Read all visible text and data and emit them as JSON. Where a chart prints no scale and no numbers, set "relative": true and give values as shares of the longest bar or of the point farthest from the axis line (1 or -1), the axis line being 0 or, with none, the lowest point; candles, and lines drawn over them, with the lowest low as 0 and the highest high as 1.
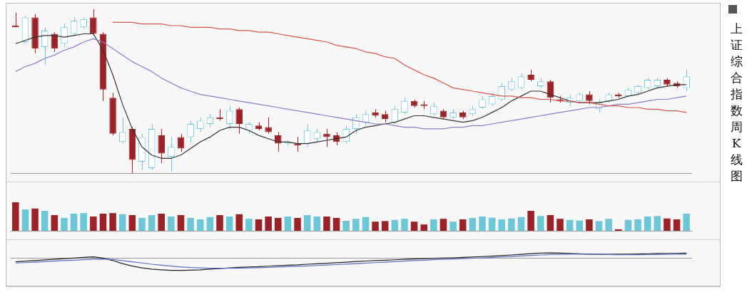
{
  "chart_data": [
    {
      "type": "candlestick",
      "title": "上证综合指数周K线图",
      "relative": true,
      "tick_labels": false,
      "legend": false,
      "marker": "none",
      "categories": [
        null,
        null,
        null,
        null,
        null,
        null,
        null,
        null,
        null,
        null,
        null,
        null,
        null,
        null,
        null,
        null,
        null,
        null,
        null,
        null,
        null,
        null,
        null,
        null,
        null,
        null,
        null,
        null,
        null,
        null,
        null,
        null,
        null,
        null,
        null,
        null,
        null,
        null,
        null,
        null,
        null,
        null,
        null,
        null,
        null,
        null,
        null,
        null,
        null,
        null,
        null,
        null,
        null,
        null,
        null,
        null,
        null,
        null,
        null,
        null,
        null,
        null,
        null,
        null,
        null,
        null,
        null,
        null,
        null,
        null
      ],
      "ohlc": [
        [
          0.9,
          0.98,
          0.89,
          0.89
        ],
        [
          0.8,
          0.96,
          0.79,
          0.95
        ],
        [
          0.95,
          0.97,
          0.73,
          0.76
        ],
        [
          0.77,
          0.89,
          0.66,
          0.87
        ],
        [
          0.85,
          0.86,
          0.74,
          0.76
        ],
        [
          0.79,
          0.91,
          0.77,
          0.89
        ],
        [
          0.85,
          0.95,
          0.84,
          0.93
        ],
        [
          0.89,
          0.95,
          0.88,
          0.94
        ],
        [
          0.95,
          1.0,
          0.84,
          0.85
        ],
        [
          0.85,
          0.86,
          0.44,
          0.51
        ],
        [
          0.46,
          0.49,
          0.23,
          0.24
        ],
        [
          0.19,
          0.34,
          0.18,
          0.25
        ],
        [
          0.27,
          0.28,
          0.0,
          0.08
        ],
        [
          0.07,
          0.24,
          0.02,
          0.22
        ],
        [
          0.03,
          0.3,
          0.02,
          0.27
        ],
        [
          0.23,
          0.27,
          0.06,
          0.12
        ],
        [
          0.1,
          0.22,
          0.01,
          0.16
        ],
        [
          0.22,
          0.24,
          0.13,
          0.15
        ],
        [
          0.22,
          0.32,
          0.19,
          0.3
        ],
        [
          0.27,
          0.34,
          0.25,
          0.32
        ],
        [
          0.3,
          0.36,
          0.28,
          0.34
        ],
        [
          0.34,
          0.39,
          0.32,
          0.33
        ],
        [
          0.3,
          0.41,
          0.27,
          0.38
        ],
        [
          0.39,
          0.4,
          0.24,
          0.3
        ],
        [
          0.26,
          0.31,
          0.24,
          0.3
        ],
        [
          0.29,
          0.31,
          0.26,
          0.27
        ],
        [
          0.28,
          0.34,
          0.24,
          0.25
        ],
        [
          0.23,
          0.25,
          0.13,
          0.18
        ],
        [
          0.18,
          0.2,
          0.17,
          0.19
        ],
        [
          0.18,
          0.22,
          0.13,
          0.17
        ],
        [
          0.18,
          0.3,
          0.16,
          0.26
        ],
        [
          0.21,
          0.27,
          0.19,
          0.25
        ],
        [
          0.24,
          0.27,
          0.16,
          0.22
        ],
        [
          0.23,
          0.25,
          0.17,
          0.19
        ],
        [
          0.19,
          0.29,
          0.18,
          0.27
        ],
        [
          0.27,
          0.36,
          0.24,
          0.34
        ],
        [
          0.31,
          0.38,
          0.29,
          0.36
        ],
        [
          0.37,
          0.39,
          0.34,
          0.35
        ],
        [
          0.36,
          0.38,
          0.31,
          0.33
        ],
        [
          0.31,
          0.41,
          0.3,
          0.39
        ],
        [
          0.37,
          0.46,
          0.36,
          0.44
        ],
        [
          0.44,
          0.45,
          0.4,
          0.41
        ],
        [
          0.42,
          0.44,
          0.39,
          0.41
        ],
        [
          0.36,
          0.43,
          0.35,
          0.41
        ],
        [
          0.38,
          0.39,
          0.33,
          0.34
        ],
        [
          0.34,
          0.39,
          0.33,
          0.37
        ],
        [
          0.37,
          0.38,
          0.33,
          0.34
        ],
        [
          0.36,
          0.41,
          0.35,
          0.39
        ],
        [
          0.4,
          0.47,
          0.39,
          0.45
        ],
        [
          0.42,
          0.49,
          0.41,
          0.47
        ],
        [
          0.45,
          0.55,
          0.44,
          0.53
        ],
        [
          0.51,
          0.58,
          0.5,
          0.56
        ],
        [
          0.52,
          0.61,
          0.51,
          0.59
        ],
        [
          0.6,
          0.63,
          0.56,
          0.57
        ],
        [
          0.53,
          0.58,
          0.52,
          0.56
        ],
        [
          0.56,
          0.57,
          0.43,
          0.46
        ],
        [
          0.45,
          0.47,
          0.43,
          0.44
        ],
        [
          0.43,
          0.48,
          0.41,
          0.46
        ],
        [
          0.44,
          0.49,
          0.43,
          0.48
        ],
        [
          0.48,
          0.5,
          0.42,
          0.44
        ],
        [
          0.39,
          0.45,
          0.37,
          0.43
        ],
        [
          0.44,
          0.49,
          0.43,
          0.48
        ],
        [
          0.48,
          0.49,
          0.46,
          0.47
        ],
        [
          0.47,
          0.52,
          0.46,
          0.51
        ],
        [
          0.49,
          0.54,
          0.48,
          0.53
        ],
        [
          0.52,
          0.58,
          0.51,
          0.57
        ],
        [
          0.53,
          0.58,
          0.52,
          0.57
        ],
        [
          0.57,
          0.58,
          0.53,
          0.54
        ],
        [
          0.55,
          0.56,
          0.52,
          0.53
        ],
        [
          0.52,
          0.63,
          0.5,
          0.59
        ]
      ],
      "colors": [
        "#9b2226",
        "#6cc8d8",
        "#9b2226",
        "#6cc8d8",
        "#9b2226",
        "#6cc8d8",
        "#6cc8d8",
        "#6cc8d8",
        "#9b2226",
        "#9b2226",
        "#9b2226",
        "#6cc8d8",
        "#9b2226",
        "#6cc8d8",
        "#6cc8d8",
        "#9b2226",
        "#6cc8d8",
        "#9b2226",
        "#6cc8d8",
        "#6cc8d8",
        "#6cc8d8",
        "#9b2226",
        "#6cc8d8",
        "#9b2226",
        "#6cc8d8",
        "#9b2226",
        "#9b2226",
        "#9b2226",
        "#6cc8d8",
        "#9b2226",
        "#6cc8d8",
        "#6cc8d8",
        "#9b2226",
        "#9b2226",
        "#6cc8d8",
        "#6cc8d8",
        "#6cc8d8",
        "#9b2226",
        "#9b2226",
        "#6cc8d8",
        "#6cc8d8",
        "#9b2226",
        "#9b2226",
        "#6cc8d8",
        "#9b2226",
        "#6cc8d8",
        "#9b2226",
        "#6cc8d8",
        "#6cc8d8",
        "#6cc8d8",
        "#6cc8d8",
        "#6cc8d8",
        "#6cc8d8",
        "#9b2226",
        "#6cc8d8",
        "#9b2226",
        "#9b2226",
        "#6cc8d8",
        "#6cc8d8",
        "#9b2226",
        "#6cc8d8",
        "#6cc8d8",
        "#9b2226",
        "#6cc8d8",
        "#6cc8d8",
        "#6cc8d8",
        "#6cc8d8",
        "#9b2226",
        "#9b2226",
        "#6cc8d8"
      ],
      "series": [
        {
          "type": "line",
          "color": "#333333",
          "values": [
            0.79,
            0.81,
            0.83,
            0.84,
            0.84,
            0.83,
            0.84,
            0.85,
            0.85,
            0.75,
            0.6,
            0.42,
            0.27,
            0.16,
            0.11,
            0.09,
            0.09,
            0.11,
            0.15,
            0.19,
            0.22,
            0.26,
            0.28,
            0.28,
            0.26,
            0.23,
            0.21,
            0.19,
            0.19,
            0.18,
            0.18,
            0.19,
            0.2,
            0.21,
            0.22,
            0.26,
            0.28,
            0.29,
            0.3,
            0.31,
            0.33,
            0.35,
            0.35,
            0.34,
            0.33,
            0.32,
            0.31,
            0.32,
            0.34,
            0.37,
            0.4,
            0.44,
            0.47,
            0.5,
            0.5,
            0.48,
            0.46,
            0.44,
            0.43,
            0.43,
            0.43,
            0.44,
            0.45,
            0.47,
            0.48,
            0.5,
            0.52,
            0.53,
            0.54,
            0.54
          ]
        },
        {
          "type": "line",
          "color": "#8e7cc3",
          "values": [
            0.62,
            0.65,
            0.67,
            0.7,
            0.72,
            0.75,
            0.77,
            0.8,
            0.82,
            0.8,
            0.76,
            0.72,
            0.68,
            0.65,
            0.62,
            0.58,
            0.55,
            0.52,
            0.5,
            0.48,
            0.47,
            0.46,
            0.45,
            0.44,
            0.43,
            0.42,
            0.41,
            0.4,
            0.39,
            0.38,
            0.37,
            0.36,
            0.35,
            0.34,
            0.33,
            0.32,
            0.31,
            0.3,
            0.3,
            0.29,
            0.28,
            0.28,
            0.27,
            0.27,
            0.27,
            0.28,
            0.28,
            0.29,
            0.29,
            0.3,
            0.31,
            0.32,
            0.33,
            0.34,
            0.35,
            0.36,
            0.37,
            0.38,
            0.39,
            0.4,
            0.4,
            0.41,
            0.42,
            0.42,
            0.43,
            0.44,
            0.45,
            0.45,
            0.46,
            0.47
          ]
        },
        {
          "type": "line",
          "color": "#d9534f",
          "values": [
            null,
            null,
            null,
            null,
            null,
            null,
            null,
            null,
            null,
            null,
            0.92,
            0.92,
            0.92,
            0.91,
            0.91,
            0.91,
            0.9,
            0.9,
            0.89,
            0.89,
            0.89,
            0.88,
            0.88,
            0.87,
            0.87,
            0.86,
            0.86,
            0.85,
            0.84,
            0.83,
            0.82,
            0.81,
            0.8,
            0.78,
            0.77,
            0.76,
            0.74,
            0.73,
            0.71,
            0.7,
            0.66,
            0.63,
            0.6,
            0.58,
            0.55,
            0.52,
            0.51,
            0.5,
            0.49,
            0.48,
            0.47,
            0.47,
            0.46,
            0.46,
            0.45,
            0.45,
            0.44,
            0.44,
            0.43,
            0.43,
            0.42,
            0.41,
            0.41,
            0.4,
            0.4,
            0.39,
            0.39,
            0.38,
            0.38,
            0.37
          ]
        }
      ]
    },
    {
      "type": "bar",
      "relative": true,
      "tick_labels": false,
      "legend": false,
      "categories": [
        null,
        null,
        null,
        null,
        null,
        null,
        null,
        null,
        null,
        null,
        null,
        null,
        null,
        null,
        null,
        null,
        null,
        null,
        null,
        null,
        null,
        null,
        null,
        null,
        null,
        null,
        null,
        null,
        null,
        null,
        null,
        null,
        null,
        null,
        null,
        null,
        null,
        null,
        null,
        null,
        null,
        null,
        null,
        null,
        null,
        null,
        null,
        null,
        null,
        null,
        null,
        null,
        null,
        null,
        null,
        null,
        null,
        null,
        null,
        null,
        null,
        null,
        null,
        null,
        null,
        null,
        null,
        null,
        null,
        null
      ],
      "values": [
        1.0,
        0.75,
        0.78,
        0.7,
        0.55,
        0.45,
        0.6,
        0.62,
        0.5,
        0.6,
        0.62,
        0.58,
        0.55,
        0.45,
        0.55,
        0.6,
        0.5,
        0.55,
        0.45,
        0.4,
        0.48,
        0.55,
        0.5,
        0.58,
        0.42,
        0.4,
        0.5,
        0.45,
        0.5,
        0.45,
        0.55,
        0.5,
        0.5,
        0.45,
        0.35,
        0.42,
        0.48,
        0.32,
        0.34,
        0.38,
        0.42,
        0.32,
        0.22,
        0.4,
        0.42,
        0.32,
        0.4,
        0.45,
        0.5,
        0.46,
        0.4,
        0.43,
        0.48,
        0.7,
        0.52,
        0.55,
        0.42,
        0.38,
        0.36,
        0.4,
        0.34,
        0.42,
        0.05,
        0.38,
        0.4,
        0.5,
        0.52,
        0.43,
        0.4,
        0.6
      ],
      "colors": [
        "#9b2226",
        "#6cc8d8",
        "#9b2226",
        "#6cc8d8",
        "#9b2226",
        "#6cc8d8",
        "#6cc8d8",
        "#6cc8d8",
        "#9b2226",
        "#9b2226",
        "#9b2226",
        "#6cc8d8",
        "#9b2226",
        "#6cc8d8",
        "#6cc8d8",
        "#9b2226",
        "#6cc8d8",
        "#9b2226",
        "#6cc8d8",
        "#6cc8d8",
        "#6cc8d8",
        "#9b2226",
        "#6cc8d8",
        "#9b2226",
        "#6cc8d8",
        "#9b2226",
        "#9b2226",
        "#9b2226",
        "#6cc8d8",
        "#9b2226",
        "#6cc8d8",
        "#6cc8d8",
        "#9b2226",
        "#9b2226",
        "#6cc8d8",
        "#6cc8d8",
        "#6cc8d8",
        "#9b2226",
        "#9b2226",
        "#6cc8d8",
        "#6cc8d8",
        "#9b2226",
        "#9b2226",
        "#6cc8d8",
        "#9b2226",
        "#6cc8d8",
        "#9b2226",
        "#6cc8d8",
        "#6cc8d8",
        "#6cc8d8",
        "#6cc8d8",
        "#6cc8d8",
        "#6cc8d8",
        "#9b2226",
        "#6cc8d8",
        "#9b2226",
        "#9b2226",
        "#6cc8d8",
        "#6cc8d8",
        "#9b2226",
        "#6cc8d8",
        "#6cc8d8",
        "#9b2226",
        "#6cc8d8",
        "#6cc8d8",
        "#6cc8d8",
        "#6cc8d8",
        "#9b2226",
        "#9b2226",
        "#6cc8d8"
      ]
    },
    {
      "type": "line",
      "relative": true,
      "tick_labels": false,
      "legend": false,
      "marker": "none",
      "categories": [
        null,
        null,
        null,
        null,
        null,
        null,
        null,
        null,
        null,
        null,
        null,
        null,
        null,
        null,
        null,
        null,
        null,
        null,
        null,
        null,
        null,
        null,
        null,
        null,
        null,
        null,
        null,
        null,
        null,
        null,
        null,
        null,
        null,
        null,
        null,
        null,
        null,
        null,
        null,
        null,
        null,
        null,
        null,
        null,
        null,
        null,
        null,
        null,
        null,
        null,
        null,
        null,
        null,
        null,
        null,
        null,
        null,
        null,
        null,
        null,
        null,
        null,
        null,
        null,
        null,
        null,
        null,
        null,
        null,
        null
      ],
      "series": [
        {
          "color": "#222222",
          "values": [
            -0.3,
            -0.25,
            -0.2,
            -0.15,
            -0.1,
            -0.05,
            0.0,
            0.05,
            0.1,
            0.0,
            -0.2,
            -0.45,
            -0.65,
            -0.8,
            -0.9,
            -0.95,
            -1.0,
            -1.0,
            -0.98,
            -0.95,
            -0.9,
            -0.85,
            -0.8,
            -0.75,
            -0.72,
            -0.7,
            -0.66,
            -0.62,
            -0.58,
            -0.55,
            -0.5,
            -0.46,
            -0.42,
            -0.38,
            -0.33,
            -0.28,
            -0.24,
            -0.2,
            -0.17,
            -0.14,
            -0.1,
            -0.07,
            -0.04,
            -0.02,
            0.0,
            0.02,
            0.05,
            0.08,
            0.12,
            0.16,
            0.2,
            0.25,
            0.3,
            0.36,
            0.4,
            0.42,
            0.4,
            0.37,
            0.34,
            0.32,
            0.3,
            0.3,
            0.31,
            0.32,
            0.33,
            0.35,
            0.37,
            0.38,
            0.38,
            0.4
          ]
        },
        {
          "color": "#5b6fc7",
          "values": [
            -0.4,
            -0.37,
            -0.33,
            -0.29,
            -0.25,
            -0.21,
            -0.17,
            -0.13,
            -0.09,
            -0.08,
            -0.12,
            -0.2,
            -0.3,
            -0.4,
            -0.5,
            -0.58,
            -0.65,
            -0.72,
            -0.77,
            -0.8,
            -0.82,
            -0.83,
            -0.83,
            -0.82,
            -0.8,
            -0.78,
            -0.76,
            -0.73,
            -0.7,
            -0.67,
            -0.64,
            -0.6,
            -0.57,
            -0.53,
            -0.49,
            -0.45,
            -0.41,
            -0.37,
            -0.33,
            -0.29,
            -0.25,
            -0.21,
            -0.17,
            -0.13,
            -0.1,
            -0.07,
            -0.04,
            -0.01,
            0.02,
            0.05,
            0.09,
            0.13,
            0.17,
            0.21,
            0.25,
            0.28,
            0.3,
            0.31,
            0.31,
            0.31,
            0.31,
            0.28,
            0.27,
            0.27,
            0.27,
            0.28,
            0.29,
            0.3,
            0.31,
            0.32
          ]
        }
      ]
    }
  ]
}
